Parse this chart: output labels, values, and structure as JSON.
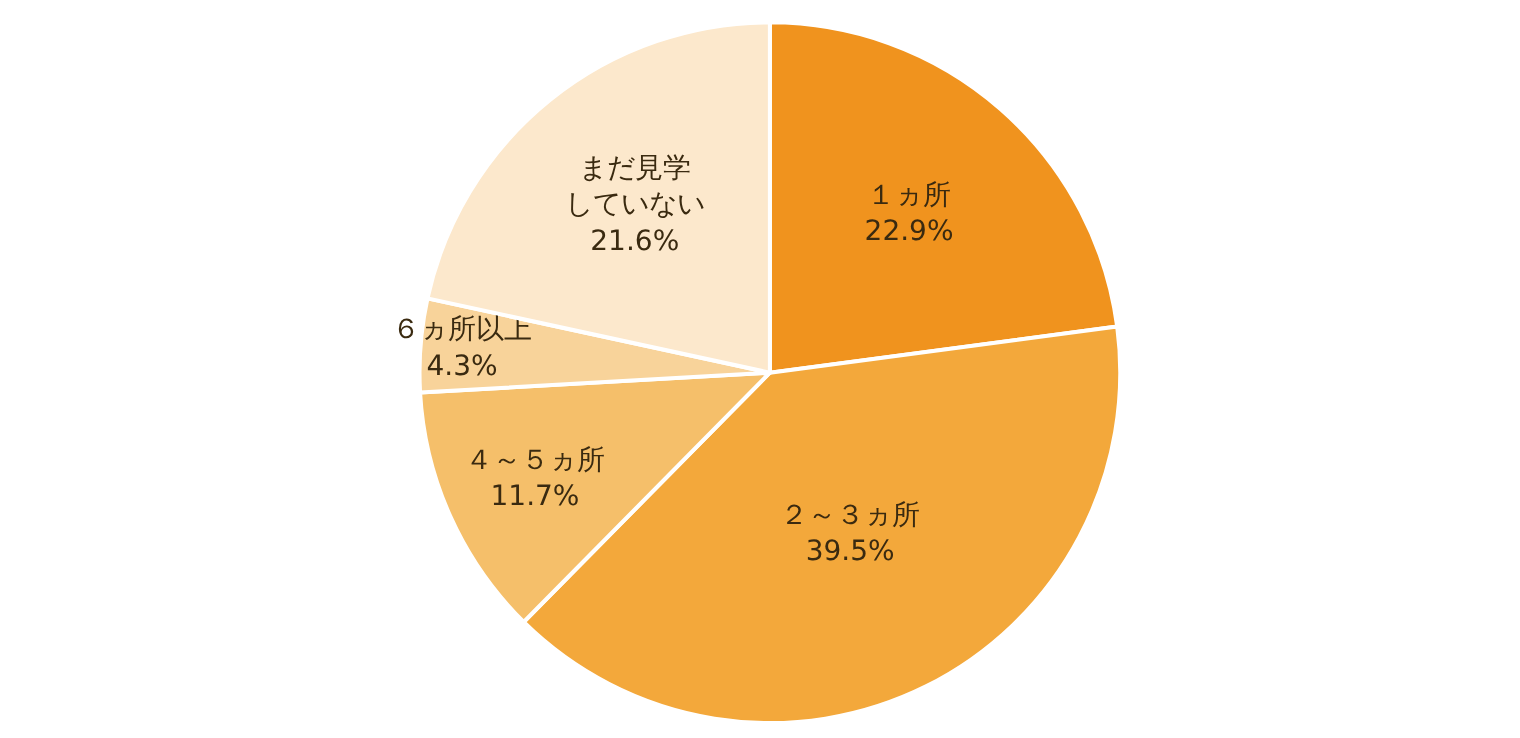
{
  "chart_data": {
    "type": "pie",
    "categories": [
      "１ヵ所",
      "２～３ヵ所",
      "４～５ヵ所",
      "６ヵ所以上",
      "まだ見学していない"
    ],
    "values": [
      22.9,
      39.5,
      11.7,
      4.3,
      21.6
    ],
    "value_labels": [
      "22.9%",
      "39.5%",
      "11.7%",
      "4.3%",
      "21.6%"
    ],
    "colors": [
      "#f0931e",
      "#f3a83b",
      "#f5bf6a",
      "#f8d39a",
      "#fce8cc"
    ]
  }
}
